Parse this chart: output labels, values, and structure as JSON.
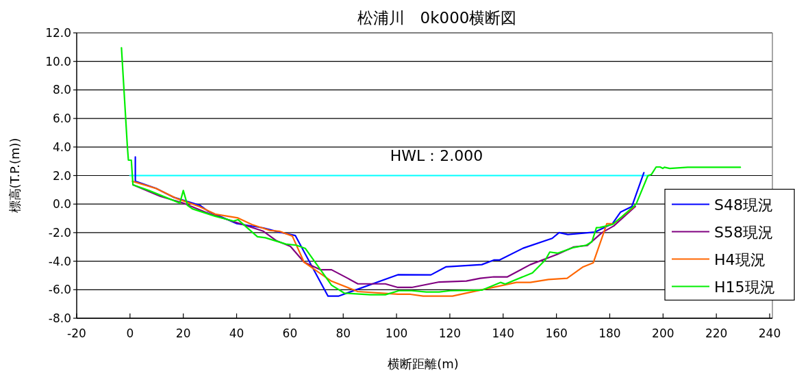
{
  "chart_data": {
    "type": "line",
    "title": "松浦川　0k000横断図",
    "xlabel": "横断距離(m)",
    "ylabel": "標高(T.P.(m))",
    "xlim": [
      -20,
      240
    ],
    "xticks": [
      -20,
      0,
      20,
      40,
      60,
      80,
      100,
      120,
      140,
      160,
      180,
      200,
      220,
      240
    ],
    "ylim": [
      -8,
      12
    ],
    "yticks": [
      {
        "value": -8,
        "label": "-8.0"
      },
      {
        "value": -6,
        "label": "-6.0"
      },
      {
        "value": -4,
        "label": "-4.0"
      },
      {
        "value": -2,
        "label": "-2.0"
      },
      {
        "value": 0,
        "label": "0.0"
      },
      {
        "value": 2,
        "label": "2.0"
      },
      {
        "value": 4,
        "label": "4.0"
      },
      {
        "value": 6,
        "label": "6.0"
      },
      {
        "value": 8,
        "label": "8.0"
      },
      {
        "value": 10,
        "label": "10.0"
      },
      {
        "value": 12,
        "label": "12.0"
      }
    ],
    "grid": "y",
    "legend": "right",
    "marker": "none",
    "line_style": "solid",
    "annotations": [
      {
        "text": "HWL：2.000",
        "x": 115,
        "y": 2.0
      }
    ],
    "series": [
      {
        "color": "#00ffff",
        "x": [
          0,
          195
        ],
        "values": [
          2.0,
          2.0
        ]
      },
      {
        "name": "S48現況",
        "color": "#0000ff",
        "x": [
          2,
          2,
          9.8,
          16.5,
          26.4,
          29.3,
          40.1,
          50,
          56,
          62,
          74.3,
          78.2,
          100.5,
          112.9,
          118.5,
          132,
          136.5,
          138.6,
          147.5,
          158.4,
          161,
          164.3,
          174.5,
          181,
          184,
          188.3,
          192.8
        ],
        "values": [
          3.3,
          1.6,
          1.1,
          0.47,
          -0.1,
          -0.5,
          -1.37,
          -1.67,
          -1.96,
          -2.2,
          -6.45,
          -6.45,
          -4.95,
          -4.96,
          -4.4,
          -4.24,
          -3.92,
          -3.92,
          -3.09,
          -2.4,
          -2.0,
          -2.13,
          -1.96,
          -1.37,
          -0.57,
          -0.17,
          2.2
        ]
      },
      {
        "name": "S58現況",
        "color": "#800080",
        "x": [
          1.1,
          11.3,
          20,
          29.4,
          50,
          55,
          60.2,
          65.3,
          71.4,
          75.6,
          81.7,
          85.5,
          95.8,
          100.5,
          105.7,
          116,
          126.2,
          131.4,
          136.5,
          141.6,
          150.2,
          160.4,
          166.5,
          171.6,
          177.1,
          181.5,
          189.6
        ],
        "values": [
          1.35,
          0.55,
          0.07,
          -0.65,
          -1.9,
          -2.57,
          -2.96,
          -4.07,
          -4.6,
          -4.6,
          -5.2,
          -5.59,
          -5.59,
          -5.84,
          -5.84,
          -5.46,
          -5.39,
          -5.2,
          -5.1,
          -5.1,
          -4.24,
          -3.52,
          -3.0,
          -2.9,
          -2.0,
          -1.53,
          -0.17
        ]
      },
      {
        "name": "H4現況",
        "color": "#ff6600",
        "x": [
          0.9,
          9.7,
          17.4,
          26,
          31.9,
          40.5,
          45.7,
          52.5,
          56,
          60.9,
          65.3,
          75.6,
          85.5,
          100.5,
          105.2,
          110,
          121,
          131.4,
          145,
          150.2,
          157,
          164,
          170,
          173.8,
          177.6,
          178.9,
          181.5,
          189
        ],
        "values": [
          1.6,
          1.1,
          0.4,
          -0.17,
          -0.7,
          -0.97,
          -1.43,
          -1.85,
          -1.9,
          -2.24,
          -4.07,
          -5.4,
          -6.13,
          -6.32,
          -6.32,
          -6.45,
          -6.45,
          -6.03,
          -5.49,
          -5.49,
          -5.28,
          -5.2,
          -4.4,
          -4.12,
          -2.08,
          -1.37,
          -1.37,
          -0.2
        ]
      },
      {
        "name": "H15現況",
        "color": "#00ee00",
        "x": [
          -3.2,
          -1.0,
          -0.6,
          0.5,
          1.1,
          7.1,
          18.7,
          20,
          21.6,
          23.4,
          31.9,
          38.8,
          40.5,
          47.8,
          50.8,
          58.5,
          62.4,
          65.8,
          75.6,
          80.4,
          90.2,
          95.8,
          100.9,
          105.7,
          111.2,
          116,
          120.2,
          132,
          139,
          140.8,
          151,
          155.8,
          157.5,
          160.4,
          166.5,
          171.2,
          173.3,
          175,
          176.3,
          181,
          184.5,
          189.9,
          194.3,
          195.6,
          197.4,
          198.9,
          199.9,
          200.5,
          202.5,
          209.3,
          229
        ],
        "values": [
          10.95,
          4.07,
          3.08,
          3.08,
          1.35,
          0.95,
          0.07,
          0.95,
          -0.09,
          -0.33,
          -0.85,
          -1.19,
          -1.09,
          -2.29,
          -2.36,
          -2.8,
          -2.88,
          -3.11,
          -5.68,
          -6.24,
          -6.35,
          -6.35,
          -6.07,
          -6.07,
          -6.16,
          -6.16,
          -6.07,
          -6.03,
          -5.49,
          -5.6,
          -4.82,
          -3.92,
          -3.36,
          -3.44,
          -3.04,
          -2.88,
          -2.64,
          -1.65,
          -1.64,
          -1.43,
          -0.89,
          0.0,
          1.99,
          2.07,
          2.6,
          2.6,
          2.5,
          2.58,
          2.5,
          2.58,
          2.58
        ]
      }
    ]
  }
}
